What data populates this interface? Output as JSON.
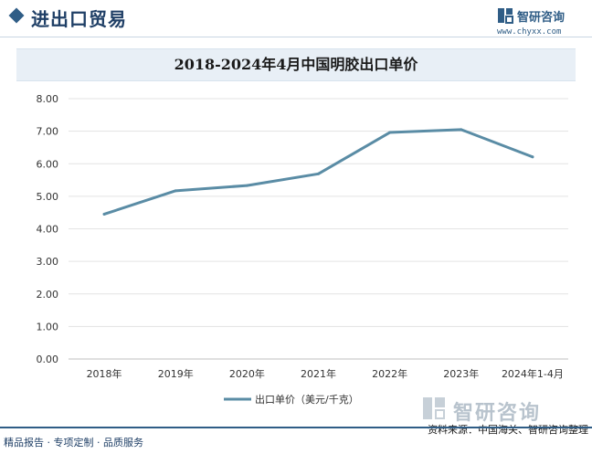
{
  "header": {
    "title": "进出口贸易",
    "brand_name": "智研咨询",
    "brand_url": "www.chyxx.com",
    "brand_color": "#2f5d86"
  },
  "footer": {
    "left_text": "精品报告 · 专项定制 · 品质服务",
    "source_text": "资料来源：中国海关、智研咨询整理",
    "logo_name": "智研咨询"
  },
  "chart_data": {
    "type": "line",
    "title": "2018-2024年4月中国明胶出口单价",
    "xlabel": "",
    "ylabel": "",
    "categories": [
      "2018年",
      "2019年",
      "2020年",
      "2021年",
      "2022年",
      "2023年",
      "2024年1-4月"
    ],
    "series": [
      {
        "name": "出口单价（美元/千克）",
        "values": [
          4.45,
          5.17,
          5.33,
          5.69,
          6.96,
          7.05,
          6.21
        ],
        "color": "#5a8ca5"
      }
    ],
    "ylim": [
      0,
      8
    ],
    "yticks": [
      "0.00",
      "1.00",
      "2.00",
      "3.00",
      "4.00",
      "5.00",
      "6.00",
      "7.00",
      "8.00"
    ],
    "grid": true,
    "legend_position": "bottom"
  }
}
